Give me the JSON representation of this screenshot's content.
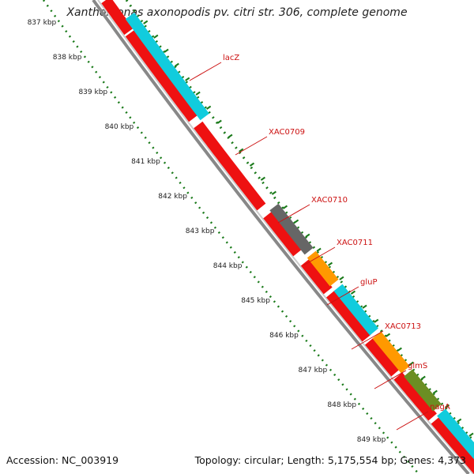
{
  "header": {
    "title": "Xanthomonas axonopodis pv. citri str. 306, complete genome"
  },
  "footer": {
    "accession": "Accession: NC_003919",
    "topology": "Topology: circular; Length: 5,175,554 bp; Genes: 4,373"
  },
  "map": {
    "kbp_ticks": [
      "837 kbp",
      "838 kbp",
      "839 kbp",
      "840 kbp",
      "841 kbp",
      "842 kbp",
      "843 kbp",
      "844 kbp",
      "845 kbp",
      "846 kbp",
      "847 kbp",
      "848 kbp",
      "849 kbp"
    ],
    "gene_labels": [
      "lacZ",
      "XAC0709",
      "XAC0710",
      "XAC0711",
      "gluP",
      "XAC0713",
      "glmS",
      "nagA"
    ],
    "colors": {
      "forward_red": "#ee1111",
      "cyan": "#11ccdd",
      "orange": "#ff9900",
      "olive": "#6b8e23",
      "gray_gene": "#666666",
      "backbone": "#888888",
      "ruler": "#1a7a1a",
      "label": "#cc1111"
    }
  }
}
